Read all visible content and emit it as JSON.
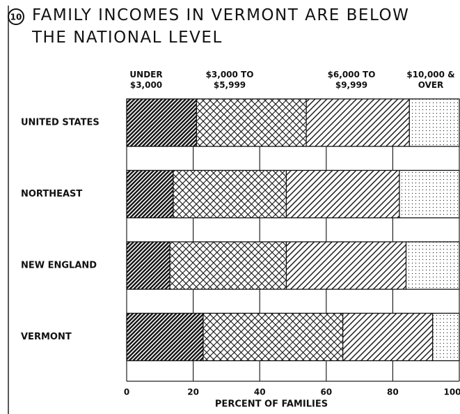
{
  "figure_number": "10",
  "chart_data": {
    "type": "stacked_bar_horizontal",
    "title": "FAMILY INCOMES IN VERMONT ARE BELOW THE NATIONAL LEVEL",
    "categories": [
      "UNITED STATES",
      "NORTHEAST",
      "NEW ENGLAND",
      "VERMONT"
    ],
    "series": [
      {
        "name": "UNDER $3,000",
        "color": "#111111",
        "values": [
          21,
          14,
          13,
          23
        ]
      },
      {
        "name": "$3,000 TO $5,999",
        "color": "#111111",
        "values": [
          33,
          34,
          35,
          42
        ]
      },
      {
        "name": "$6,000 TO $9,999",
        "color": "#111111",
        "values": [
          31,
          34,
          36,
          27
        ]
      },
      {
        "name": "$10,000 & OVER",
        "color": "#111111",
        "values": [
          15,
          18,
          16,
          8
        ]
      }
    ],
    "xlabel": "PERCENT OF FAMILIES",
    "xlim": [
      0,
      100
    ],
    "xticks": [
      0,
      20,
      40,
      60,
      80,
      100
    ],
    "grid": true
  }
}
